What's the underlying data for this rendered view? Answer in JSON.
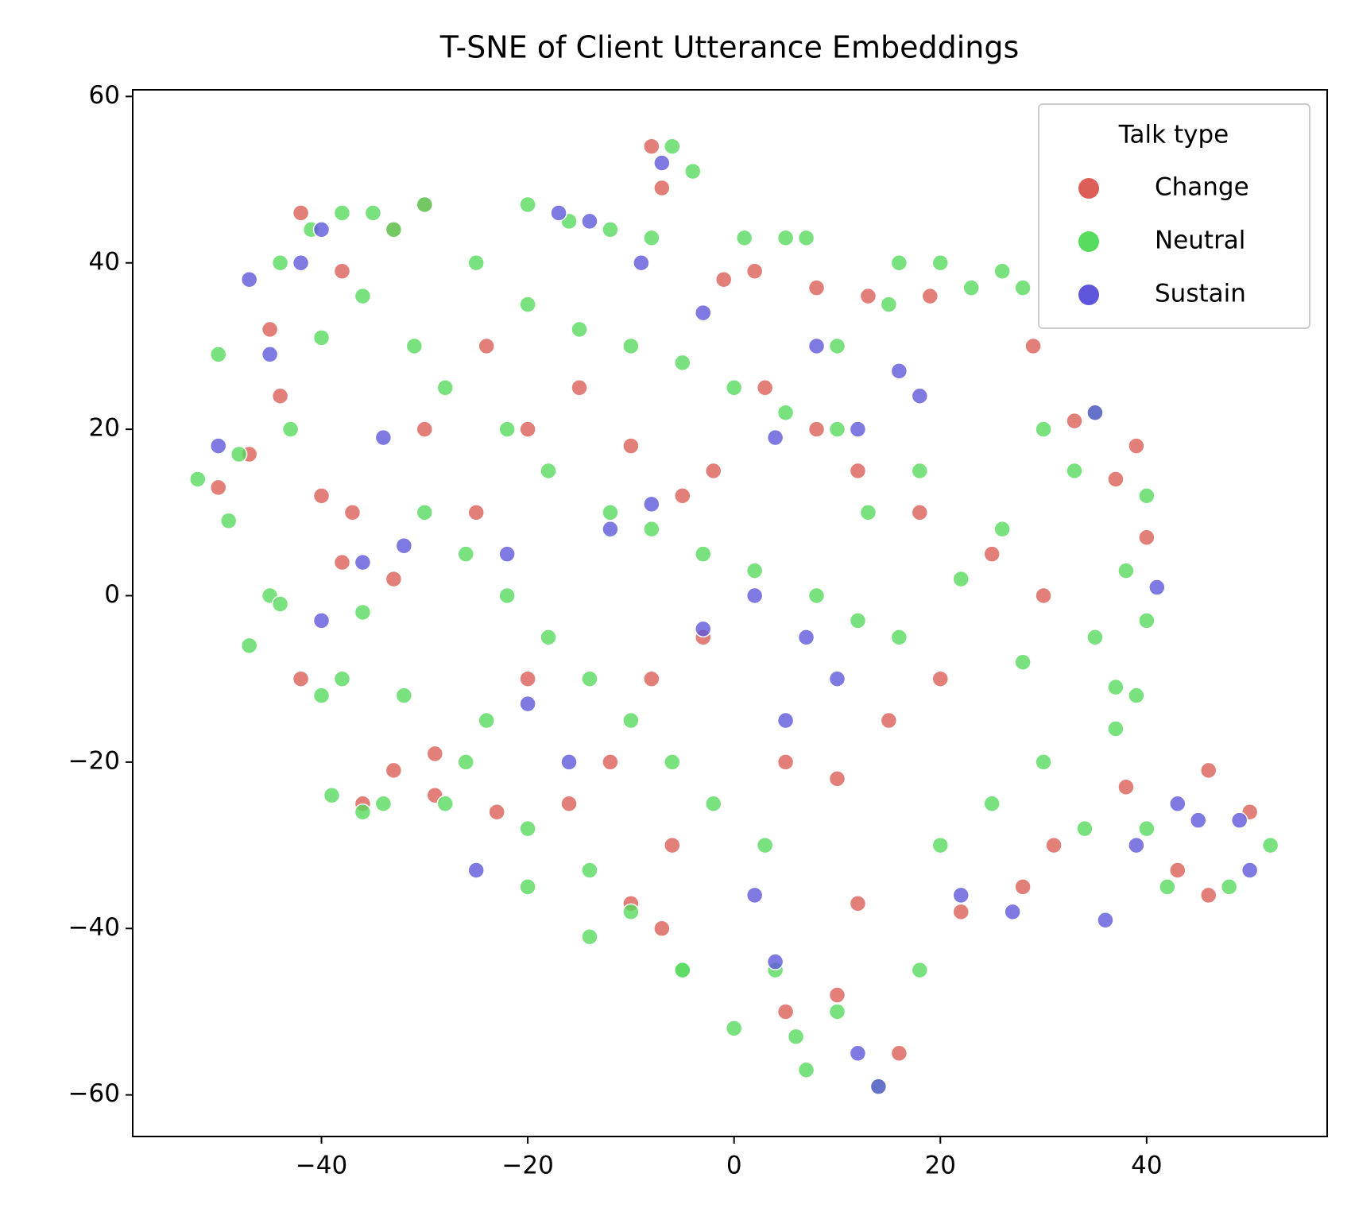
{
  "chart_data": {
    "type": "scatter",
    "title": "T-SNE of Client Utterance Embeddings",
    "xlim": [
      -58.3,
      57.5
    ],
    "ylim": [
      -65,
      60.8
    ],
    "xticks": [
      {
        "value": -40,
        "label": "−40"
      },
      {
        "value": -20,
        "label": "−20"
      },
      0,
      20,
      40
    ],
    "yticks": [
      {
        "value": -60,
        "label": "−60"
      },
      {
        "value": -40,
        "label": "−40"
      },
      {
        "value": -20,
        "label": "−20"
      },
      0,
      20,
      40,
      60
    ],
    "legend_title": "Talk type",
    "legend_position": "upper right",
    "series": [
      {
        "name": "Change",
        "color": "#db5f57",
        "x": [
          -50,
          -47,
          -45,
          -42,
          -38,
          -37,
          -40,
          -38,
          -42,
          -30,
          -33,
          -33,
          -29,
          -29,
          -36,
          -33,
          -24,
          -20,
          -15,
          -10,
          -5,
          -8,
          -7,
          -1,
          2,
          8,
          13,
          19,
          29,
          33,
          39,
          37,
          40,
          30,
          25,
          18,
          12,
          8,
          3,
          -2,
          -3,
          -8,
          -12,
          -16,
          -6,
          -10,
          -7,
          5,
          10,
          15,
          20,
          22,
          28,
          31,
          38,
          46,
          50,
          46,
          43,
          5,
          10,
          16,
          12,
          -23,
          -30,
          -44,
          -25,
          -20
        ],
        "values": [
          13,
          17,
          32,
          -10,
          4,
          10,
          12,
          39,
          46,
          47,
          44,
          2,
          -19,
          -24,
          -25,
          -21,
          30,
          20,
          25,
          18,
          12,
          54,
          49,
          38,
          39,
          37,
          36,
          36,
          30,
          21,
          18,
          14,
          7,
          0,
          5,
          10,
          15,
          20,
          25,
          15,
          -5,
          -10,
          -20,
          -25,
          -30,
          -37,
          -40,
          -20,
          -22,
          -15,
          -10,
          -38,
          -35,
          -30,
          -23,
          -21,
          -26,
          -36,
          -33,
          -50,
          -48,
          -55,
          -37,
          -26,
          20,
          24,
          10,
          -10
        ]
      },
      {
        "name": "Neutral",
        "color": "#57db5f",
        "x": [
          -52,
          -49,
          -50,
          -45,
          -47,
          -44,
          -41,
          -38,
          -35,
          -33,
          -30,
          -40,
          -38,
          -39,
          -36,
          -34,
          -20,
          -16,
          -12,
          -8,
          -6,
          -4,
          1,
          5,
          7,
          -25,
          -20,
          -15,
          -10,
          -5,
          0,
          5,
          10,
          -28,
          -22,
          -18,
          -12,
          -8,
          -3,
          2,
          8,
          12,
          16,
          -30,
          -26,
          -22,
          -18,
          -14,
          -10,
          -6,
          -2,
          3,
          -24,
          -20,
          -14,
          -10,
          -5,
          -20,
          -14,
          4,
          6,
          10,
          14,
          18,
          7,
          20,
          25,
          30,
          34,
          37,
          39,
          37,
          40,
          42,
          48,
          52,
          20,
          23,
          26,
          28,
          16,
          30,
          35,
          33,
          40,
          38,
          40,
          35,
          26,
          22,
          28,
          13,
          18,
          10,
          15,
          -32,
          -36,
          -44,
          -43,
          -48,
          -40,
          -36,
          -31,
          -28,
          -26,
          0,
          -5
        ],
        "values": [
          14,
          9,
          29,
          0,
          -6,
          40,
          44,
          46,
          46,
          44,
          47,
          -12,
          -10,
          -24,
          -26,
          -25,
          47,
          45,
          44,
          43,
          54,
          51,
          43,
          43,
          43,
          40,
          35,
          32,
          30,
          28,
          25,
          22,
          20,
          25,
          20,
          15,
          10,
          8,
          5,
          3,
          0,
          -3,
          -5,
          10,
          5,
          0,
          -5,
          -10,
          -15,
          -20,
          -25,
          -30,
          -15,
          -28,
          -33,
          -38,
          -45,
          -35,
          -41,
          -45,
          -53,
          -50,
          -59,
          -45,
          -57,
          -30,
          -25,
          -20,
          -28,
          -11,
          -12,
          -16,
          -28,
          -35,
          -35,
          -30,
          40,
          37,
          39,
          37,
          40,
          20,
          22,
          15,
          12,
          3,
          -3,
          -5,
          8,
          2,
          -8,
          10,
          15,
          30,
          35,
          -12,
          -2,
          -1,
          20,
          17,
          31,
          36,
          30,
          -25,
          -20,
          -52,
          -45
        ]
      },
      {
        "name": "Sustain",
        "color": "#5f57db",
        "x": [
          -47,
          -50,
          -45,
          -42,
          -40,
          -34,
          -36,
          -32,
          -40,
          -17,
          -14,
          -9,
          -7,
          -3,
          -12,
          -8,
          -22,
          -20,
          -16,
          -25,
          -3,
          2,
          7,
          10,
          4,
          8,
          16,
          18,
          35,
          41,
          43,
          45,
          49,
          50,
          39,
          36,
          27,
          22,
          4,
          12,
          14,
          2,
          12,
          5
        ],
        "values": [
          38,
          18,
          29,
          40,
          44,
          19,
          4,
          6,
          -3,
          46,
          45,
          40,
          52,
          34,
          8,
          11,
          5,
          -13,
          -20,
          -33,
          -4,
          0,
          -5,
          -10,
          19,
          30,
          27,
          24,
          22,
          1,
          -25,
          -27,
          -27,
          -33,
          -30,
          -39,
          -38,
          -36,
          -44,
          -55,
          -59,
          -36,
          20,
          -15
        ]
      }
    ]
  }
}
